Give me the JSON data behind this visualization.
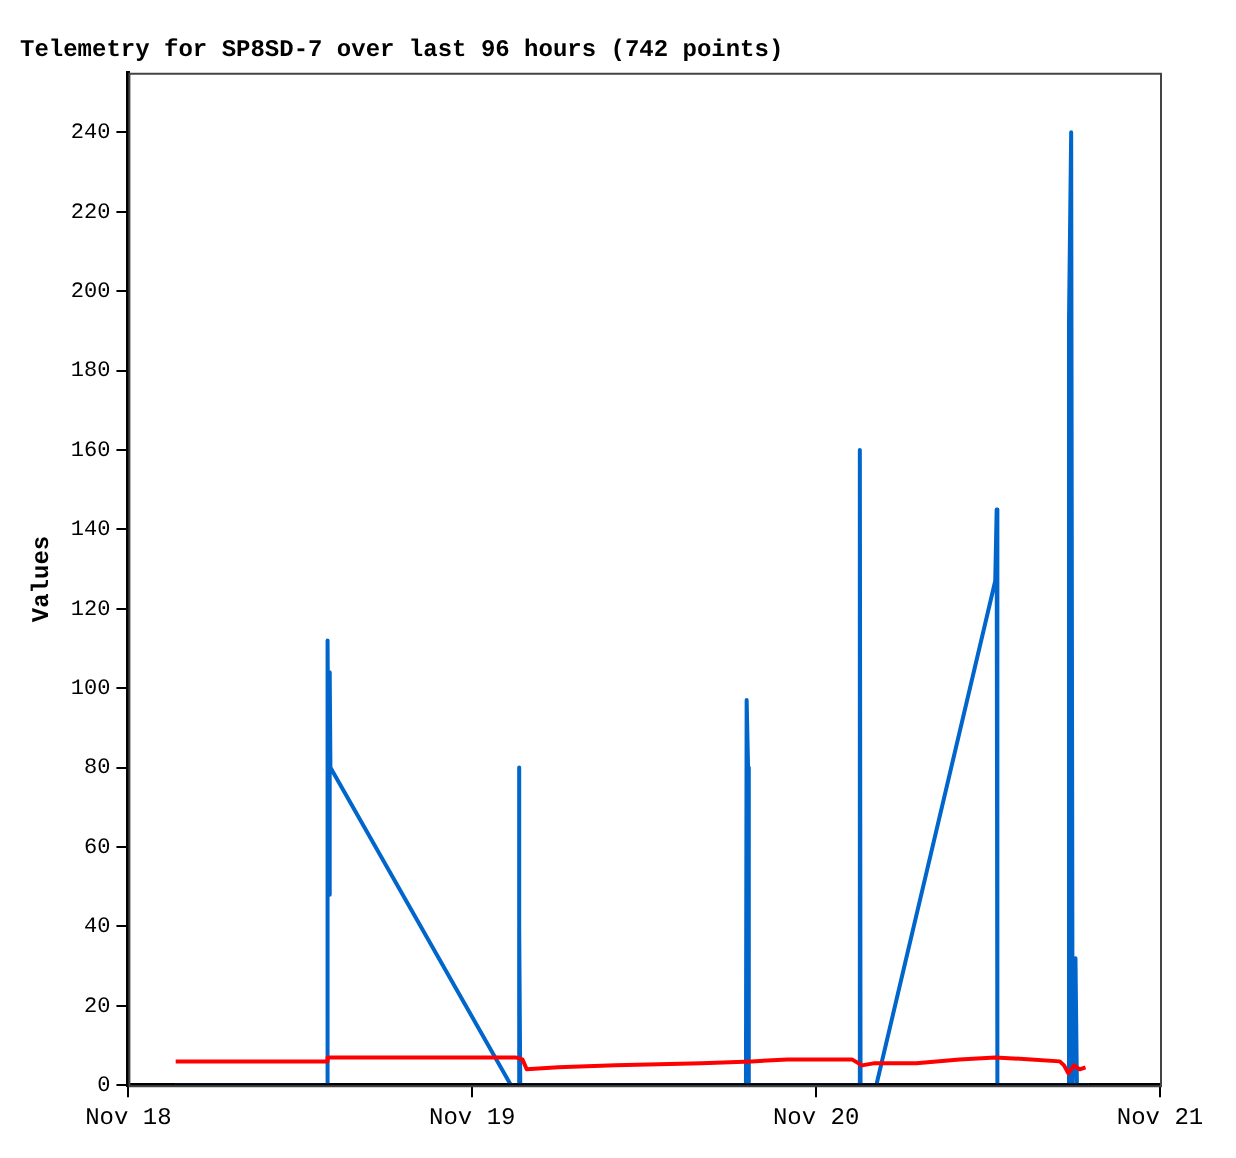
{
  "chart_data": {
    "type": "line",
    "title": "Telemetry for SP8SD-7 over last 96 hours (742 points)",
    "ylabel": "Values",
    "xlim": [
      "--11-18",
      "--11-21"
    ],
    "xticks": [
      {
        "value": "--11-18",
        "label": "Nov 18"
      },
      {
        "value": "--11-19",
        "label": "Nov 19"
      },
      {
        "value": "--11-20",
        "label": "Nov 20"
      },
      {
        "value": "--11-21",
        "label": "Nov 21"
      }
    ],
    "ylim": [
      0,
      255
    ],
    "yticks": [
      0,
      20,
      40,
      60,
      80,
      100,
      120,
      140,
      160,
      180,
      200,
      220,
      240
    ],
    "grid": false,
    "legend": false,
    "marker": "none",
    "line_style": "solid",
    "series": [
      {
        "color": "#0066cc",
        "x": [
          "--11-18T03:18",
          "--11-18T13:48",
          "--11-18T13:54",
          "--11-18T14:00",
          "--11-18T14:03",
          "--11-18T14:06",
          "--11-19T02:42",
          "--11-19T03:12",
          "--11-19T03:15",
          "--11-19T03:18",
          "--11-19T03:21",
          "--11-19T19:06",
          "--11-19T19:09",
          "--11-19T19:15",
          "--11-19T19:18",
          "--11-20T03:00",
          "--11-20T03:03",
          "--11-20T03:06",
          "--11-20T04:12",
          "--11-20T12:30",
          "--11-20T12:36",
          "--11-20T12:39",
          "--11-20T17:36",
          "--11-20T17:39",
          "--11-20T17:48",
          "--11-20T17:54",
          "--11-20T18:06",
          "--11-20T18:12",
          "--11-20T19:00"
        ],
        "values": [
          0,
          0,
          112,
          48,
          104,
          80,
          0,
          0,
          80,
          40,
          0,
          0,
          97,
          80,
          0,
          0,
          160,
          0,
          0,
          127,
          145,
          0,
          0,
          193,
          240,
          0,
          32,
          0,
          0
        ]
      },
      {
        "color": "#ff0000",
        "x": [
          "--11-18T03:18",
          "--11-18T13:48",
          "--11-18T13:54",
          "--11-19T03:00",
          "--11-19T03:30",
          "--11-19T03:48",
          "--11-19T06:00",
          "--11-19T10:00",
          "--11-19T16:00",
          "--11-19T19:30",
          "--11-19T22:00",
          "--11-20T02:30",
          "--11-20T03:12",
          "--11-20T04:00",
          "--11-20T07:00",
          "--11-20T10:00",
          "--11-20T12:30",
          "--11-20T15:00",
          "--11-20T17:00",
          "--11-20T17:18",
          "--11-20T17:36",
          "--11-20T18:00",
          "--11-20T18:24",
          "--11-20T18:48"
        ],
        "values": [
          6,
          6,
          7,
          7,
          6.5,
          4,
          4.5,
          5,
          5.5,
          6,
          6.5,
          6.5,
          5,
          5.5,
          5.5,
          6.5,
          7,
          6.5,
          6,
          5,
          3,
          5,
          4,
          4.5
        ]
      },
      {
        "color": "#000000",
        "x": [
          "--11-18T03:18",
          "--11-20T19:00"
        ],
        "values": [
          0,
          0
        ]
      }
    ]
  }
}
